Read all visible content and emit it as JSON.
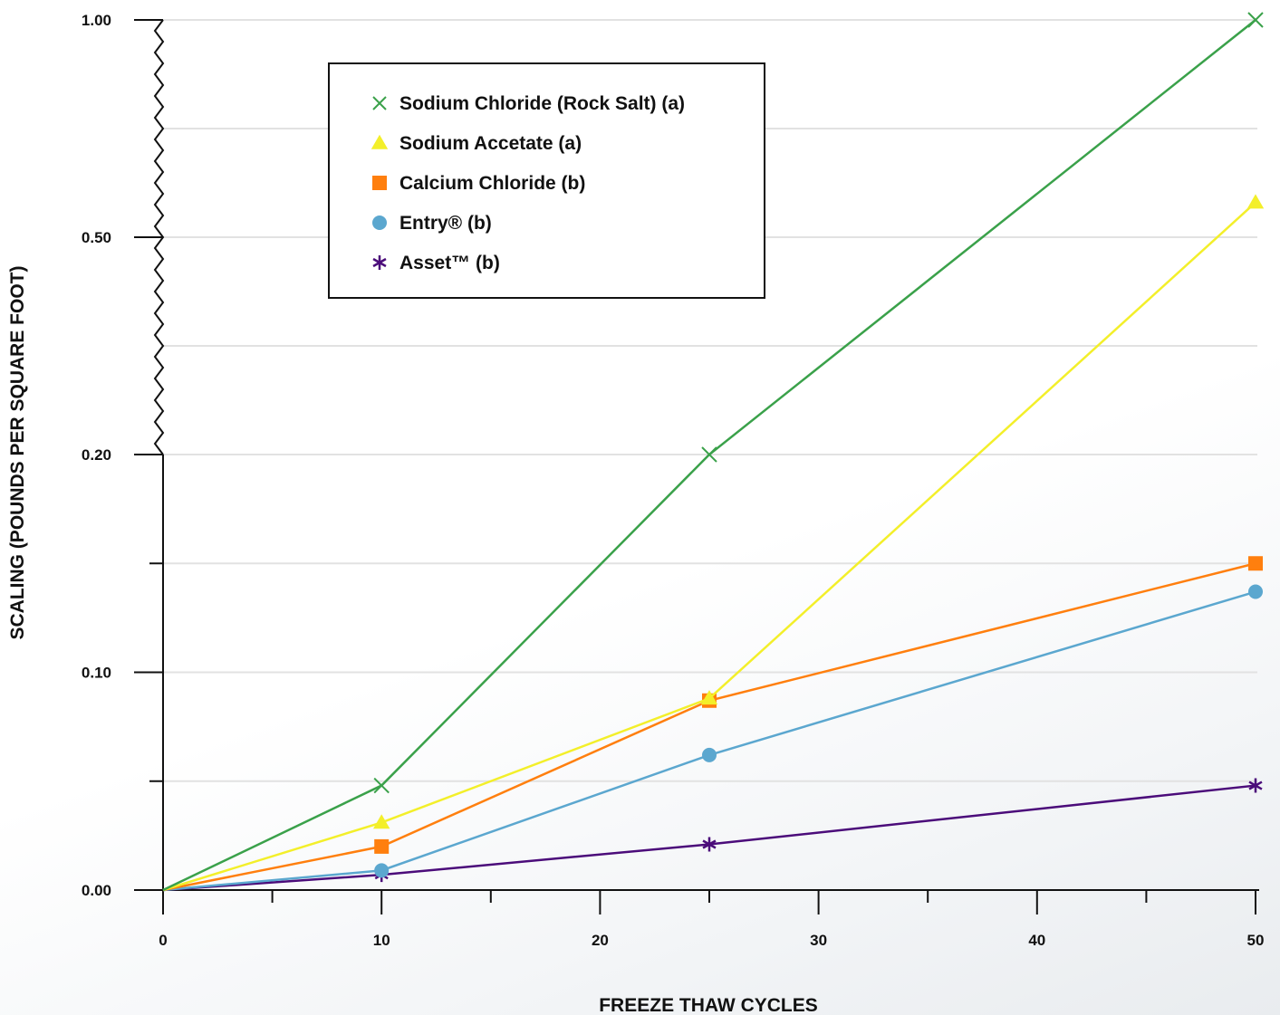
{
  "chart_data": {
    "type": "line",
    "xlabel": "FREEZE THAW CYCLES",
    "ylabel": "SCALING (POUNDS PER SQUARE FOOT)",
    "x_ticks": [
      "0",
      "10",
      "20",
      "30",
      "40",
      "50"
    ],
    "x_tick_values": [
      0,
      10,
      20,
      30,
      40,
      50
    ],
    "xlim": [
      0,
      50
    ],
    "y_ticks": [
      "0.00",
      "0.10",
      "0.20",
      "0.50",
      "1.00"
    ],
    "y_tick_values": [
      0,
      0.1,
      0.2,
      0.5,
      1.0
    ],
    "y_scale": "broken (linear 0–0.20, compressed 0.20–1.00)",
    "grid": true,
    "legend_position": "top-left",
    "series": [
      {
        "name": "Sodium Chloride (Rock Salt) (a)",
        "color": "#3aa14a",
        "marker": "x",
        "x": [
          0,
          10,
          25,
          50
        ],
        "y": [
          0,
          0.048,
          0.2,
          1.0
        ]
      },
      {
        "name": "Sodium Accetate (a)",
        "color": "#f3ef2a",
        "marker": "triangle",
        "x": [
          0,
          10,
          25,
          50
        ],
        "y": [
          0,
          0.031,
          0.088,
          0.58
        ]
      },
      {
        "name": "Calcium Chloride (b)",
        "color": "#ff7f0e",
        "marker": "square",
        "x": [
          0,
          10,
          25,
          50
        ],
        "y": [
          0,
          0.02,
          0.087,
          0.15
        ]
      },
      {
        "name": "Entry® (b)",
        "color": "#5ba7cf",
        "marker": "circle",
        "x": [
          0,
          10,
          25,
          50
        ],
        "y": [
          0,
          0.009,
          0.062,
          0.137
        ]
      },
      {
        "name": "Asset™ (b)",
        "color": "#4b0c7a",
        "marker": "asterisk",
        "x": [
          0,
          10,
          25,
          50
        ],
        "y": [
          0,
          0.007,
          0.021,
          0.048
        ]
      }
    ]
  }
}
